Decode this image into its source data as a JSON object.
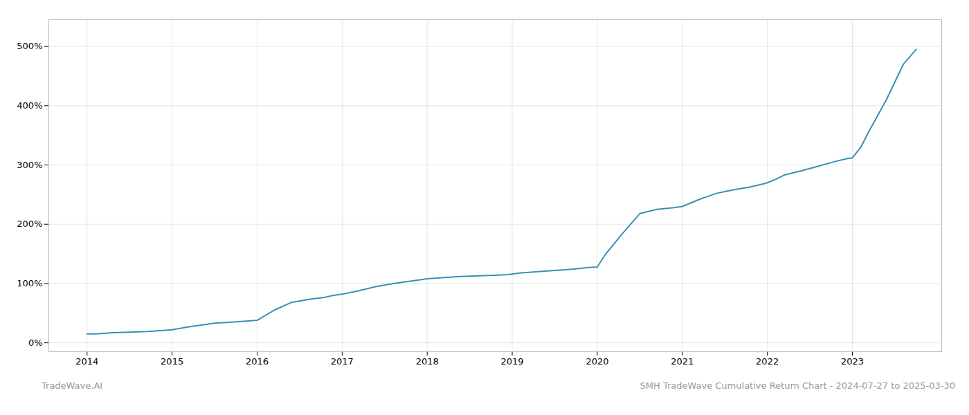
{
  "chart_data": {
    "type": "line",
    "title": "SMH TradeWave Cumulative Return Chart - 2024-07-27 to 2025-03-30",
    "annotations": [
      "TradeWave.AI"
    ],
    "x": [
      2014.0,
      2014.1,
      2014.2,
      2014.3,
      2014.5,
      2014.7,
      2014.9,
      2015.0,
      2015.2,
      2015.5,
      2015.7,
      2015.9,
      2016.0,
      2016.2,
      2016.4,
      2016.6,
      2016.8,
      2016.9,
      2017.0,
      2017.2,
      2017.4,
      2017.6,
      2017.8,
      2017.95,
      2018.0,
      2018.2,
      2018.4,
      2018.6,
      2018.8,
      2018.95,
      2019.0,
      2019.1,
      2019.2,
      2019.3,
      2019.5,
      2019.7,
      2019.9,
      2020.0,
      2020.1,
      2020.3,
      2020.5,
      2020.7,
      2020.9,
      2021.0,
      2021.2,
      2021.4,
      2021.5,
      2021.6,
      2021.8,
      2021.95,
      2022.0,
      2022.1,
      2022.2,
      2022.4,
      2022.6,
      2022.8,
      2022.95,
      2023.0,
      2023.1,
      2023.2,
      2023.4,
      2023.6,
      2023.75
    ],
    "values": [
      15,
      15,
      16,
      17,
      18,
      19,
      21,
      22,
      27,
      33,
      35,
      37,
      38,
      55,
      68,
      73,
      77,
      80,
      82,
      88,
      95,
      100,
      104,
      107,
      108,
      110,
      112,
      113,
      114,
      115,
      116,
      118,
      119,
      120,
      122,
      124,
      127,
      128,
      150,
      185,
      218,
      225,
      228,
      230,
      242,
      252,
      255,
      258,
      263,
      268,
      270,
      276,
      283,
      290,
      298,
      306,
      311,
      312,
      330,
      358,
      410,
      470,
      495
    ],
    "color": "#3a8fb5",
    "xlim": [
      2013.55,
      2024.05
    ],
    "xticks": [
      2014,
      2015,
      2016,
      2017,
      2018,
      2019,
      2020,
      2021,
      2022,
      2023
    ],
    "ylim": [
      -15,
      545
    ],
    "yticks": [
      {
        "value": 0,
        "label": "0%"
      },
      {
        "value": 100,
        "label": "100%"
      },
      {
        "value": 200,
        "label": "200%"
      },
      {
        "value": 300,
        "label": "300%"
      },
      {
        "value": 400,
        "label": "400%"
      },
      {
        "value": 500,
        "label": "500%"
      }
    ],
    "grid": true
  }
}
